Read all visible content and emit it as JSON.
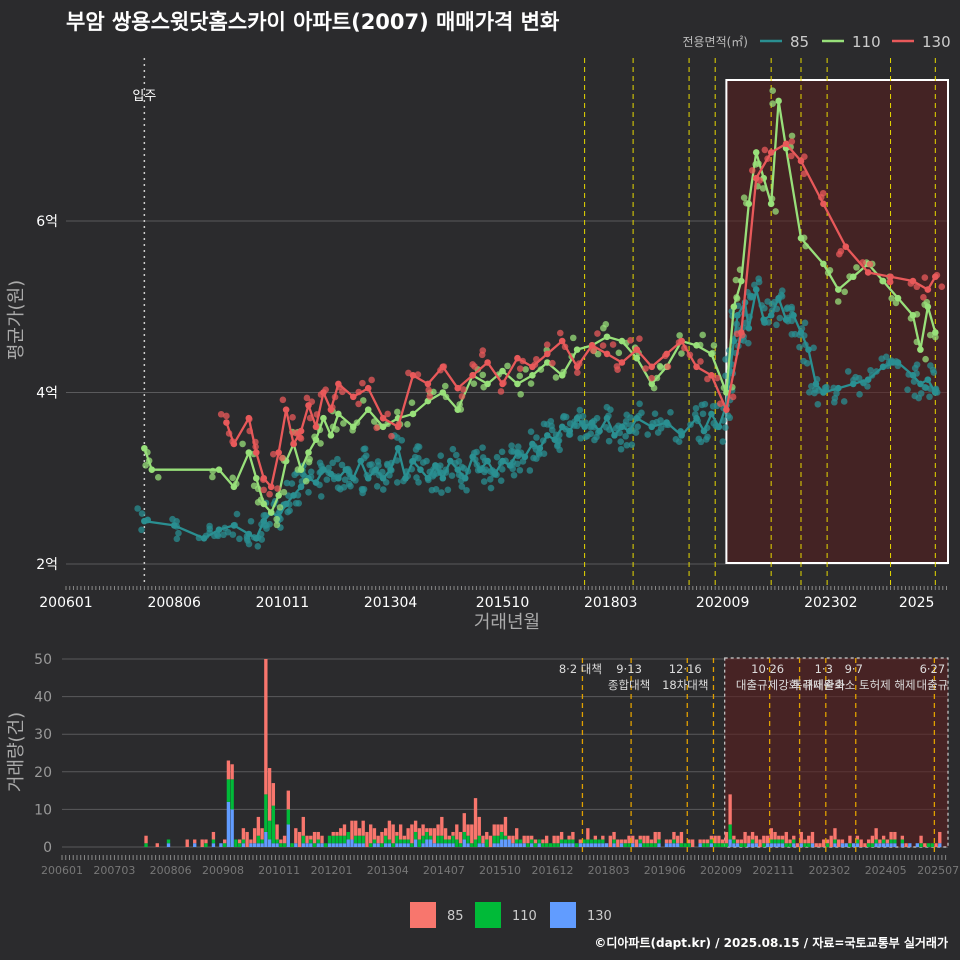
{
  "title": "부암 쌍용스윗닷홈스카이 아파트(2007) 매매가격 변화",
  "footer": "©디아파트(dapt.kr) / 2025.08.15 / 자료=국토교통부 실거래가",
  "colors": {
    "c85": "#2a8f91",
    "c110": "#98e07a",
    "c130": "#e8595a",
    "bar85": "#f8766d",
    "bar110": "#00ba38",
    "bar130": "#619cff",
    "policy": "#e6d800",
    "highlight": "#5a1e1e"
  },
  "chart_data": [
    {
      "type": "line",
      "xlabel": "거래년월",
      "ylabel": "평균가(원)",
      "x_ticks": [
        "200601",
        "200806",
        "201011",
        "201304",
        "201510",
        "201803",
        "202009",
        "202302",
        "2025"
      ],
      "y_ticks": [
        "2억",
        "4억",
        "6억"
      ],
      "y_tick_values": [
        2,
        4,
        6
      ],
      "ylim": [
        1.7,
        7.8
      ],
      "y_unit": "억",
      "legend_title": "전용면적(㎡)",
      "legend_position": "top-right",
      "movein_label": "입주",
      "movein_date": "2007-10",
      "highlight_range": [
        "2020-10",
        "2025-12"
      ],
      "series": [
        {
          "name": "85",
          "points": [
            [
              "2007-10",
              2.5
            ],
            [
              "2008-06",
              2.45
            ],
            [
              "2009-02",
              2.3
            ],
            [
              "2009-06",
              2.4
            ],
            [
              "2009-10",
              2.45
            ],
            [
              "2010-02",
              2.35
            ],
            [
              "2010-04",
              2.3
            ],
            [
              "2010-06",
              2.5
            ],
            [
              "2010-08",
              2.6
            ],
            [
              "2010-10",
              2.55
            ],
            [
              "2010-12",
              2.7
            ],
            [
              "2011-02",
              2.8
            ],
            [
              "2011-04",
              2.9
            ],
            [
              "2011-06",
              3.0
            ],
            [
              "2011-08",
              2.95
            ],
            [
              "2011-10",
              3.1
            ],
            [
              "2011-12",
              3.05
            ],
            [
              "2012-02",
              3.0
            ],
            [
              "2012-04",
              3.1
            ],
            [
              "2012-06",
              3.0
            ],
            [
              "2012-08",
              3.2
            ],
            [
              "2012-10",
              3.0
            ],
            [
              "2012-12",
              3.1
            ],
            [
              "2013-02",
              3.0
            ],
            [
              "2013-04",
              3.1
            ],
            [
              "2013-06",
              3.35
            ],
            [
              "2013-08",
              3.0
            ],
            [
              "2013-10",
              3.2
            ],
            [
              "2013-12",
              3.1
            ],
            [
              "2014-02",
              3.0
            ],
            [
              "2014-04",
              3.15
            ],
            [
              "2014-06",
              3.0
            ],
            [
              "2014-08",
              3.2
            ],
            [
              "2014-10",
              3.1
            ],
            [
              "2014-12",
              3.0
            ],
            [
              "2015-02",
              3.25
            ],
            [
              "2015-04",
              3.1
            ],
            [
              "2015-06",
              3.2
            ],
            [
              "2015-08",
              3.05
            ],
            [
              "2015-10",
              3.2
            ],
            [
              "2015-12",
              3.15
            ],
            [
              "2016-02",
              3.3
            ],
            [
              "2016-04",
              3.25
            ],
            [
              "2016-06",
              3.4
            ],
            [
              "2016-08",
              3.35
            ],
            [
              "2016-10",
              3.5
            ],
            [
              "2016-12",
              3.45
            ],
            [
              "2017-02",
              3.6
            ],
            [
              "2017-04",
              3.55
            ],
            [
              "2017-06",
              3.7
            ],
            [
              "2017-08",
              3.6
            ],
            [
              "2017-10",
              3.65
            ],
            [
              "2017-12",
              3.55
            ],
            [
              "2018-02",
              3.7
            ],
            [
              "2018-04",
              3.5
            ],
            [
              "2018-06",
              3.6
            ],
            [
              "2018-08",
              3.55
            ],
            [
              "2018-10",
              3.7
            ],
            [
              "2019-02",
              3.6
            ],
            [
              "2019-06",
              3.65
            ],
            [
              "2019-10",
              3.5
            ],
            [
              "2020-02",
              3.7
            ],
            [
              "2020-04",
              3.55
            ],
            [
              "2020-06",
              3.75
            ],
            [
              "2020-08",
              3.6
            ],
            [
              "2020-10",
              3.85
            ],
            [
              "2020-11",
              4.25
            ],
            [
              "2020-12",
              4.6
            ],
            [
              "2021-01",
              4.9
            ],
            [
              "2021-03",
              5.05
            ],
            [
              "2021-04",
              4.75
            ],
            [
              "2021-06",
              5.2
            ],
            [
              "2021-08",
              4.85
            ],
            [
              "2021-10",
              4.9
            ],
            [
              "2021-12",
              5.1
            ],
            [
              "2022-02",
              4.85
            ],
            [
              "2022-04",
              4.9
            ],
            [
              "2022-06",
              4.7
            ],
            [
              "2022-08",
              4.5
            ],
            [
              "2022-10",
              4.1
            ],
            [
              "2022-12",
              4.0
            ],
            [
              "2023-04",
              4.05
            ],
            [
              "2023-08",
              4.1
            ],
            [
              "2023-12",
              4.15
            ],
            [
              "2024-04",
              4.3
            ],
            [
              "2024-08",
              4.35
            ],
            [
              "2024-12",
              4.2
            ],
            [
              "2025-02",
              4.1
            ],
            [
              "2025-04",
              4.15
            ],
            [
              "2025-06",
              4.0
            ]
          ]
        },
        {
          "name": "110",
          "points": [
            [
              "2007-10",
              3.35
            ],
            [
              "2007-12",
              3.1
            ],
            [
              "2009-06",
              3.1
            ],
            [
              "2009-10",
              2.9
            ],
            [
              "2010-02",
              3.3
            ],
            [
              "2010-04",
              3.0
            ],
            [
              "2010-06",
              2.7
            ],
            [
              "2010-08",
              2.6
            ],
            [
              "2010-10",
              2.8
            ],
            [
              "2010-12",
              3.2
            ],
            [
              "2011-02",
              3.4
            ],
            [
              "2011-04",
              3.1
            ],
            [
              "2011-06",
              3.3
            ],
            [
              "2011-08",
              3.45
            ],
            [
              "2011-10",
              3.7
            ],
            [
              "2011-12",
              3.5
            ],
            [
              "2012-02",
              3.75
            ],
            [
              "2012-06",
              3.6
            ],
            [
              "2012-10",
              3.8
            ],
            [
              "2013-02",
              3.6
            ],
            [
              "2013-06",
              3.7
            ],
            [
              "2013-10",
              3.75
            ],
            [
              "2014-02",
              3.9
            ],
            [
              "2014-06",
              4.0
            ],
            [
              "2014-10",
              3.8
            ],
            [
              "2015-02",
              4.2
            ],
            [
              "2015-06",
              4.1
            ],
            [
              "2015-10",
              4.25
            ],
            [
              "2016-02",
              4.1
            ],
            [
              "2016-06",
              4.2
            ],
            [
              "2016-10",
              4.35
            ],
            [
              "2017-02",
              4.2
            ],
            [
              "2017-06",
              4.5
            ],
            [
              "2017-10",
              4.55
            ],
            [
              "2018-02",
              4.65
            ],
            [
              "2018-06",
              4.6
            ],
            [
              "2018-10",
              4.4
            ],
            [
              "2019-02",
              4.1
            ],
            [
              "2019-06",
              4.3
            ],
            [
              "2019-10",
              4.6
            ],
            [
              "2020-02",
              4.55
            ],
            [
              "2020-06",
              4.45
            ],
            [
              "2020-10",
              4.0
            ],
            [
              "2020-12",
              5.0
            ],
            [
              "2021-02",
              5.3
            ],
            [
              "2021-04",
              6.2
            ],
            [
              "2021-06",
              6.8
            ],
            [
              "2021-08",
              6.5
            ],
            [
              "2021-10",
              6.2
            ],
            [
              "2021-12",
              7.4
            ],
            [
              "2022-02",
              6.85
            ],
            [
              "2022-06",
              5.8
            ],
            [
              "2022-12",
              5.5
            ],
            [
              "2023-04",
              5.2
            ],
            [
              "2023-08",
              5.35
            ],
            [
              "2023-12",
              5.5
            ],
            [
              "2024-04",
              5.3
            ],
            [
              "2024-08",
              5.1
            ],
            [
              "2024-12",
              4.9
            ],
            [
              "2025-02",
              4.5
            ],
            [
              "2025-04",
              5.0
            ],
            [
              "2025-06",
              4.7
            ]
          ]
        },
        {
          "name": "130",
          "points": [
            [
              "2009-08",
              3.65
            ],
            [
              "2009-10",
              3.4
            ],
            [
              "2010-02",
              3.7
            ],
            [
              "2010-04",
              3.3
            ],
            [
              "2010-06",
              3.0
            ],
            [
              "2010-08",
              2.9
            ],
            [
              "2010-10",
              3.3
            ],
            [
              "2010-12",
              3.8
            ],
            [
              "2011-02",
              3.4
            ],
            [
              "2011-04",
              3.55
            ],
            [
              "2011-06",
              3.85
            ],
            [
              "2011-08",
              3.6
            ],
            [
              "2011-10",
              4.0
            ],
            [
              "2011-12",
              3.8
            ],
            [
              "2012-02",
              4.1
            ],
            [
              "2012-06",
              3.95
            ],
            [
              "2012-10",
              4.05
            ],
            [
              "2013-02",
              3.7
            ],
            [
              "2013-06",
              3.6
            ],
            [
              "2013-10",
              4.2
            ],
            [
              "2014-02",
              4.1
            ],
            [
              "2014-06",
              4.3
            ],
            [
              "2014-10",
              4.05
            ],
            [
              "2015-02",
              4.2
            ],
            [
              "2015-06",
              4.35
            ],
            [
              "2015-10",
              4.1
            ],
            [
              "2016-02",
              4.4
            ],
            [
              "2016-06",
              4.3
            ],
            [
              "2016-10",
              4.45
            ],
            [
              "2017-02",
              4.6
            ],
            [
              "2017-06",
              4.3
            ],
            [
              "2017-10",
              4.55
            ],
            [
              "2018-02",
              4.45
            ],
            [
              "2018-06",
              4.35
            ],
            [
              "2018-10",
              4.5
            ],
            [
              "2019-02",
              4.3
            ],
            [
              "2019-06",
              4.45
            ],
            [
              "2019-10",
              4.6
            ],
            [
              "2020-02",
              4.3
            ],
            [
              "2020-06",
              4.2
            ],
            [
              "2020-10",
              3.8
            ],
            [
              "2021-02",
              4.7
            ],
            [
              "2021-06",
              6.5
            ],
            [
              "2021-10",
              6.8
            ],
            [
              "2022-02",
              6.9
            ],
            [
              "2022-06",
              6.7
            ],
            [
              "2022-12",
              6.2
            ],
            [
              "2023-06",
              5.7
            ],
            [
              "2023-12",
              5.4
            ],
            [
              "2024-06",
              5.35
            ],
            [
              "2024-12",
              5.3
            ],
            [
              "2025-04",
              5.2
            ],
            [
              "2025-06",
              5.35
            ]
          ]
        }
      ],
      "policy_dates": [
        "2017-08",
        "2018-09",
        "2019-12",
        "2020-07",
        "2021-10",
        "2022-06",
        "2023-01",
        "2024-06",
        "2025-06"
      ]
    },
    {
      "type": "bar",
      "stacked": true,
      "xlabel": "",
      "ylabel": "거래량(건)",
      "x_ticks": [
        "200601",
        "200703",
        "200806",
        "200908",
        "201011",
        "201201",
        "201304",
        "201407",
        "201510",
        "201612",
        "201803",
        "201906",
        "202009",
        "202111",
        "202302",
        "202405",
        "202507"
      ],
      "y_ticks": [
        "0",
        "10",
        "20",
        "30",
        "40",
        "50"
      ],
      "ylim": [
        0,
        50
      ],
      "legend_position": "bottom",
      "series_names": [
        "85",
        "110",
        "130"
      ],
      "highlight_range": [
        "2020-10",
        "2025-12"
      ],
      "policy_annotations": [
        {
          "date": "2017-08",
          "label": "8·2 대책"
        },
        {
          "date": "2018-09",
          "label": "9·13\n종합대책"
        },
        {
          "date": "2019-12",
          "label": "12·16\n18차대책"
        },
        {
          "date": "2020-07",
          "label": ""
        },
        {
          "date": "2021-10",
          "label": "10·26\n대출규제강화"
        },
        {
          "date": "2022-06",
          "label": ""
        },
        {
          "date": "2023-01",
          "label": "1·3\n규제완화"
        },
        {
          "date": "2023-09",
          "label": "9·7\n특례대출축소 토허제 해제"
        },
        {
          "date": "2025-06",
          "label": "6·27\n대출규"
        }
      ],
      "spikes": [
        {
          "date": "2009-09",
          "v85": 5,
          "v110": 6,
          "v130": 12
        },
        {
          "date": "2009-10",
          "v85": 4,
          "v110": 8,
          "v130": 10
        },
        {
          "date": "2010-07",
          "v85": 36,
          "v110": 10,
          "v130": 4
        },
        {
          "date": "2010-08",
          "v85": 14,
          "v110": 5,
          "v130": 2
        },
        {
          "date": "2010-09",
          "v85": 6,
          "v110": 10,
          "v130": 1
        },
        {
          "date": "2011-01",
          "v85": 5,
          "v110": 4,
          "v130": 6
        },
        {
          "date": "2015-03",
          "v85": 11,
          "v110": 2,
          "v130": 0
        },
        {
          "date": "2020-11",
          "v85": 8,
          "v110": 4,
          "v130": 2
        }
      ]
    }
  ]
}
